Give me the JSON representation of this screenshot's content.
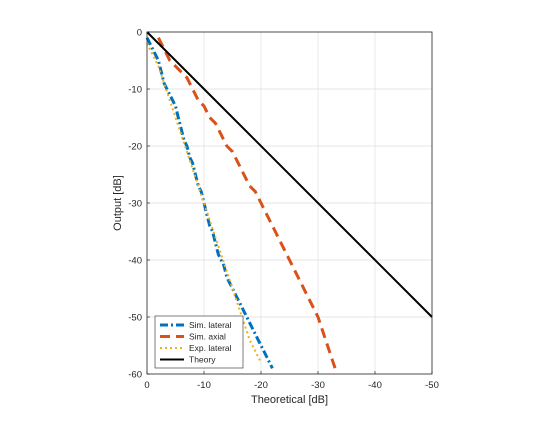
{
  "chart_data": {
    "type": "line",
    "title": "",
    "xlabel": "Theoretical [dB]",
    "ylabel": "Output [dB]",
    "xlim": [
      0,
      -50
    ],
    "ylim": [
      -60,
      0
    ],
    "xticks": [
      0,
      -10,
      -20,
      -30,
      -40,
      -50
    ],
    "yticks": [
      0,
      -10,
      -20,
      -30,
      -40,
      -50,
      -60
    ],
    "grid": true,
    "legend_position": "bottom-left",
    "series": [
      {
        "name": "Sim. lateral",
        "color": "#0072BD",
        "style": "dashdot",
        "x": [
          0,
          -1,
          -2,
          -2.5,
          -3,
          -3.5,
          -4,
          -4.5,
          -5,
          -5.5,
          -6,
          -6.5,
          -7,
          -7.5,
          -8,
          -8.5,
          -9,
          -9.5,
          -10,
          -10.5,
          -11,
          -11.5,
          -12,
          -12.5,
          -13,
          -13.5,
          -14,
          -14.5,
          -15,
          -15.5,
          -16,
          -16.5,
          -17,
          -17.5,
          -18,
          -18.5,
          -19,
          -19.5,
          -20,
          -20.5,
          -21,
          -21.5,
          -22
        ],
        "y": [
          -1,
          -3,
          -5,
          -7,
          -9,
          -10,
          -11,
          -12,
          -13,
          -15,
          -17,
          -19,
          -20,
          -22,
          -23,
          -25,
          -27,
          -28,
          -30,
          -32,
          -34,
          -35,
          -37,
          -39,
          -40,
          -41,
          -43,
          -44,
          -45,
          -46,
          -47,
          -48,
          -49,
          -50,
          -51,
          -52,
          -53,
          -54,
          -55,
          -56,
          -57,
          -58,
          -59
        ]
      },
      {
        "name": "Sim. axial",
        "color": "#D95319",
        "style": "dashed",
        "x": [
          -2,
          -3,
          -4,
          -5,
          -6,
          -7,
          -8,
          -9,
          -10,
          -11,
          -12,
          -13,
          -14,
          -15,
          -16,
          -17,
          -18,
          -19,
          -20,
          -21,
          -22,
          -23,
          -24,
          -25,
          -26,
          -27,
          -28,
          -29,
          -30,
          -31,
          -32,
          -33
        ],
        "y": [
          -1,
          -3,
          -5,
          -6,
          -7,
          -8,
          -10,
          -12,
          -13,
          -15,
          -16,
          -18,
          -20,
          -21,
          -23,
          -25,
          -27,
          -28,
          -30,
          -32,
          -34,
          -36,
          -38,
          -40,
          -42,
          -44,
          -46,
          -48,
          -50,
          -53,
          -56,
          -59
        ]
      },
      {
        "name": "Exp. lateral",
        "color": "#EDB120",
        "style": "dotted",
        "x": [
          0,
          -1,
          -2,
          -3,
          -4,
          -5,
          -6,
          -7,
          -8,
          -9,
          -10,
          -11,
          -12,
          -13,
          -14,
          -15,
          -16,
          -17,
          -18,
          -19,
          -20
        ],
        "y": [
          -2,
          -4,
          -6,
          -9,
          -12,
          -15,
          -18,
          -21,
          -24,
          -27,
          -30,
          -33,
          -36,
          -39,
          -42,
          -45,
          -48,
          -51,
          -54,
          -56,
          -58
        ]
      },
      {
        "name": "Theory",
        "color": "#000000",
        "style": "solid",
        "x": [
          0,
          -50
        ],
        "y": [
          0,
          -50
        ]
      }
    ]
  }
}
